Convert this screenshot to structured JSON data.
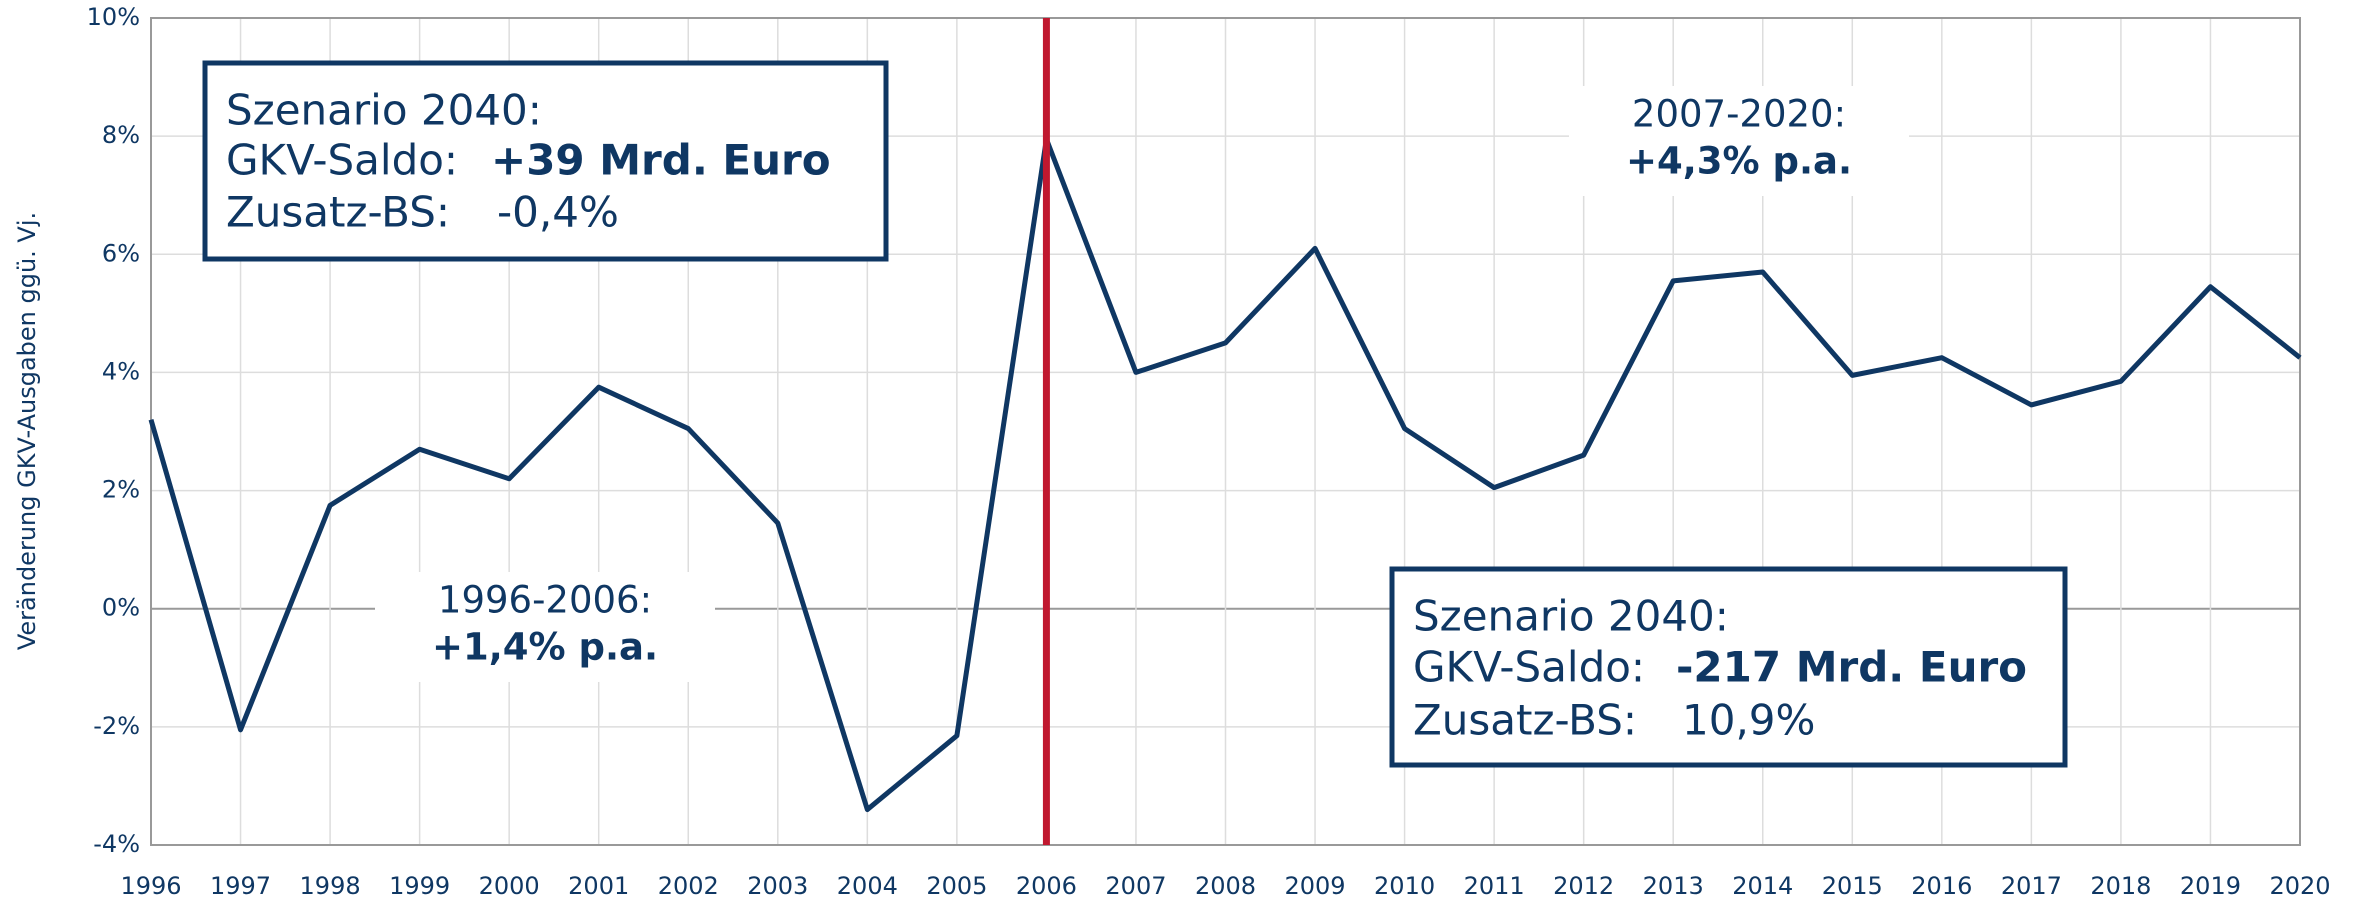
{
  "chart_data": {
    "type": "line",
    "y_label": "Veränderung GKV-Ausgaben ggü. Vj.",
    "x": [
      1996,
      1997,
      1998,
      1999,
      2000,
      2001,
      2002,
      2003,
      2004,
      2005,
      2006,
      2007,
      2008,
      2009,
      2010,
      2011,
      2012,
      2013,
      2014,
      2015,
      2016,
      2017,
      2018,
      2019,
      2020
    ],
    "series": [
      {
        "name": "Veränderung GKV-Ausgaben",
        "color": "#0f3763",
        "values": [
          3.2,
          -2.05,
          1.75,
          2.7,
          2.2,
          3.75,
          3.05,
          1.45,
          -3.4,
          -2.15,
          7.95,
          4.0,
          4.5,
          6.1,
          3.05,
          2.05,
          2.6,
          5.55,
          5.7,
          3.95,
          4.25,
          3.45,
          3.85,
          5.45,
          4.25
        ]
      }
    ],
    "xlim": [
      1996,
      2020
    ],
    "xticks": [
      1996,
      1997,
      1998,
      1999,
      2000,
      2001,
      2002,
      2003,
      2004,
      2005,
      2006,
      2007,
      2008,
      2009,
      2010,
      2011,
      2012,
      2013,
      2014,
      2015,
      2016,
      2017,
      2018,
      2019,
      2020
    ],
    "ylim": [
      -4,
      10
    ],
    "yticks": [
      {
        "value": -4,
        "label": "-4%"
      },
      {
        "value": -2,
        "label": "-2%"
      },
      {
        "value": 0,
        "label": "0%"
      },
      {
        "value": 2,
        "label": "2%"
      },
      {
        "value": 4,
        "label": "4%"
      },
      {
        "value": 6,
        "label": "6%"
      },
      {
        "value": 8,
        "label": "8%"
      },
      {
        "value": 10,
        "label": "10%"
      }
    ],
    "grid": true,
    "vline": {
      "x": 2006,
      "color": "#c0182f"
    },
    "period_labels": [
      {
        "lines": [
          "1996-2006:",
          "+1,4% p.a."
        ],
        "color": "#5e6b1f"
      },
      {
        "lines": [
          "2007-2020:",
          "+4,3% p.a."
        ],
        "color": "#c0182f"
      }
    ],
    "boxes": [
      {
        "title": "Szenario 2040:",
        "saldo_label": "GKV-Saldo:",
        "saldo": "+39 Mrd. Euro",
        "bs_label": "Zusatz-BS:",
        "bs": "-0,4%",
        "color": "#5e6b1f"
      },
      {
        "title": "Szenario 2040:",
        "saldo_label": "GKV-Saldo:",
        "saldo": "-217 Mrd. Euro",
        "bs_label": "Zusatz-BS:",
        "bs": "10,9%",
        "color": "#c0182f"
      }
    ]
  }
}
